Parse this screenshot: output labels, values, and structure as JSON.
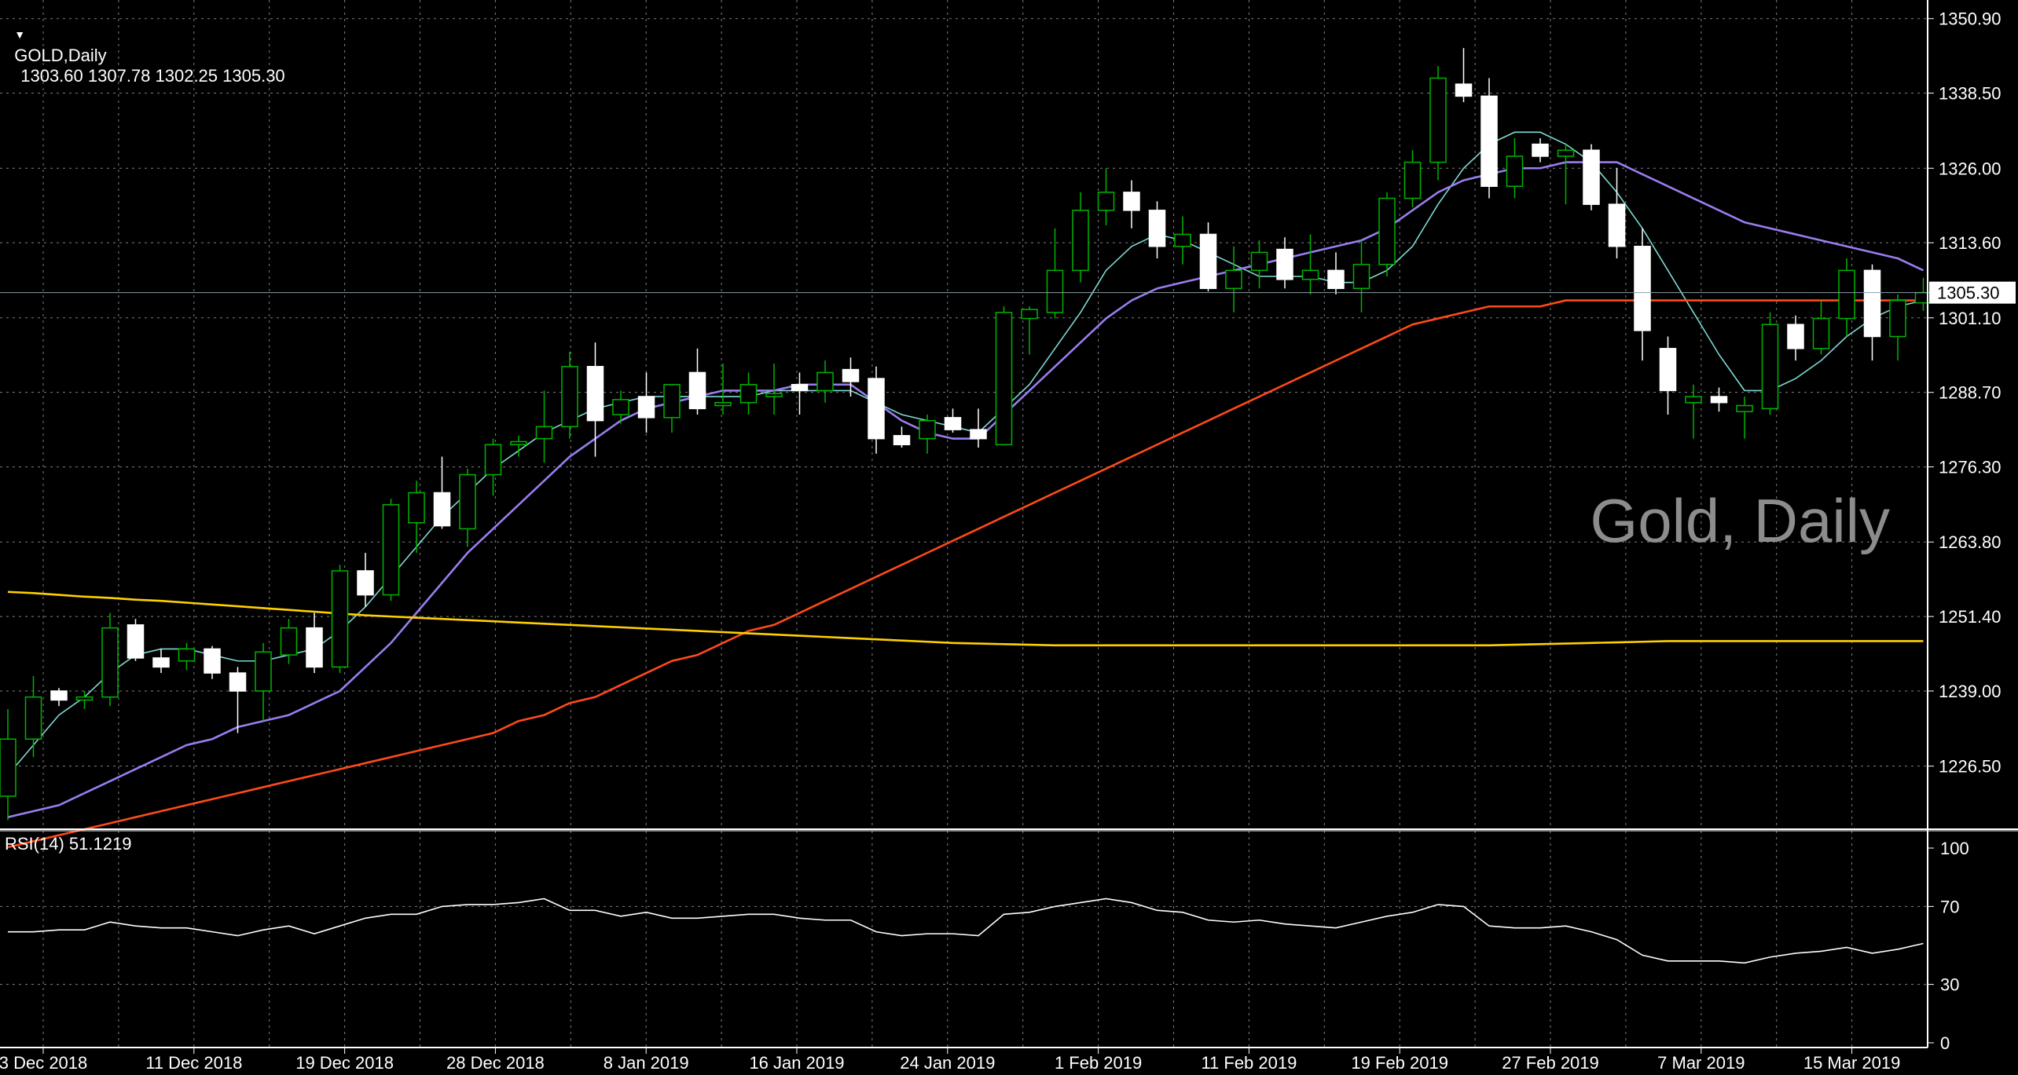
{
  "header": {
    "symbol_label": "GOLD,Daily",
    "ohlc": "1303.60 1307.78 1302.25 1305.30"
  },
  "watermark": "Gold, Daily",
  "price_axis": {
    "ticks": [
      "1350.90",
      "1338.50",
      "1326.00",
      "1313.60",
      "1301.10",
      "1288.70",
      "1276.30",
      "1263.80",
      "1251.40",
      "1239.00",
      "1226.50"
    ],
    "current_price_label": "1305.30"
  },
  "rsi": {
    "label": "RSI(14) 51.1219",
    "ticks": [
      "100",
      "70",
      "30",
      "0"
    ]
  },
  "time_axis": {
    "labels": [
      "3 Dec 2018",
      "11 Dec 2018",
      "19 Dec 2018",
      "28 Dec 2018",
      "8 Jan 2019",
      "16 Jan 2019",
      "24 Jan 2019",
      "1 Feb 2019",
      "11 Feb 2019",
      "19 Feb 2019",
      "27 Feb 2019",
      "7 Mar 2019",
      "15 Mar 2019"
    ]
  },
  "colors": {
    "background": "#000000",
    "bull_candle": "#00b400",
    "bear_candle": "#ffffff",
    "ma_fast": "#7fd8d4",
    "ma_medium": "#9a7df0",
    "ma_slow": "#ff4a1a",
    "ma_long": "#ffd000",
    "rsi_line": "#ffffff",
    "grid": "#808080",
    "watermark": "#8c8c8c"
  },
  "chart_data": [
    {
      "type": "candlestick",
      "title": "GOLD,Daily",
      "ylim": [
        1216,
        1354
      ],
      "candles": [
        {
          "o": 1221.5,
          "h": 1236,
          "l": 1217.5,
          "c": 1231
        },
        {
          "o": 1231,
          "h": 1241.5,
          "l": 1228,
          "c": 1238
        },
        {
          "o": 1239,
          "h": 1239.5,
          "l": 1236.5,
          "c": 1237.5
        },
        {
          "o": 1237.5,
          "h": 1239,
          "l": 1236,
          "c": 1238
        },
        {
          "o": 1238,
          "h": 1252,
          "l": 1236.5,
          "c": 1249.5
        },
        {
          "o": 1250,
          "h": 1251,
          "l": 1244,
          "c": 1244.5
        },
        {
          "o": 1244.5,
          "h": 1246,
          "l": 1242,
          "c": 1243
        },
        {
          "o": 1244,
          "h": 1247,
          "l": 1242.5,
          "c": 1246
        },
        {
          "o": 1246,
          "h": 1246.5,
          "l": 1241,
          "c": 1242
        },
        {
          "o": 1242,
          "h": 1243,
          "l": 1232,
          "c": 1239
        },
        {
          "o": 1239,
          "h": 1247,
          "l": 1234,
          "c": 1245.5
        },
        {
          "o": 1245,
          "h": 1251,
          "l": 1243.5,
          "c": 1249.5
        },
        {
          "o": 1249.5,
          "h": 1252,
          "l": 1242,
          "c": 1243
        },
        {
          "o": 1243,
          "h": 1260,
          "l": 1242,
          "c": 1259
        },
        {
          "o": 1259,
          "h": 1262,
          "l": 1253,
          "c": 1255
        },
        {
          "o": 1255,
          "h": 1271,
          "l": 1254,
          "c": 1270
        },
        {
          "o": 1267,
          "h": 1274,
          "l": 1262,
          "c": 1272
        },
        {
          "o": 1272,
          "h": 1278,
          "l": 1266,
          "c": 1266.5
        },
        {
          "o": 1266,
          "h": 1276,
          "l": 1263,
          "c": 1275
        },
        {
          "o": 1275,
          "h": 1281,
          "l": 1271.5,
          "c": 1280
        },
        {
          "o": 1280,
          "h": 1281.5,
          "l": 1278,
          "c": 1280.5
        },
        {
          "o": 1281,
          "h": 1289,
          "l": 1277,
          "c": 1283
        },
        {
          "o": 1283,
          "h": 1295.5,
          "l": 1281,
          "c": 1293
        },
        {
          "o": 1293,
          "h": 1297,
          "l": 1278,
          "c": 1284
        },
        {
          "o": 1285,
          "h": 1289,
          "l": 1283.5,
          "c": 1287.5
        },
        {
          "o": 1288,
          "h": 1292,
          "l": 1282,
          "c": 1284.5
        },
        {
          "o": 1284.5,
          "h": 1290,
          "l": 1282,
          "c": 1290
        },
        {
          "o": 1292,
          "h": 1296,
          "l": 1285,
          "c": 1286
        },
        {
          "o": 1286.5,
          "h": 1293.5,
          "l": 1285,
          "c": 1287
        },
        {
          "o": 1287,
          "h": 1292,
          "l": 1285,
          "c": 1290
        },
        {
          "o": 1288,
          "h": 1293.5,
          "l": 1285,
          "c": 1288.5
        },
        {
          "o": 1290,
          "h": 1292,
          "l": 1285,
          "c": 1289
        },
        {
          "o": 1289,
          "h": 1294,
          "l": 1287,
          "c": 1292
        },
        {
          "o": 1292.5,
          "h": 1294.5,
          "l": 1288,
          "c": 1290.5
        },
        {
          "o": 1291,
          "h": 1293,
          "l": 1278.5,
          "c": 1281
        },
        {
          "o": 1281.5,
          "h": 1283,
          "l": 1279.5,
          "c": 1280
        },
        {
          "o": 1281,
          "h": 1285,
          "l": 1278.5,
          "c": 1284
        },
        {
          "o": 1284.5,
          "h": 1286,
          "l": 1282,
          "c": 1282.5
        },
        {
          "o": 1282.5,
          "h": 1286,
          "l": 1279.5,
          "c": 1281
        },
        {
          "o": 1280,
          "h": 1303,
          "l": 1280,
          "c": 1302
        },
        {
          "o": 1301,
          "h": 1303,
          "l": 1295,
          "c": 1302.5
        },
        {
          "o": 1302,
          "h": 1316,
          "l": 1301,
          "c": 1309
        },
        {
          "o": 1309,
          "h": 1322,
          "l": 1307,
          "c": 1319
        },
        {
          "o": 1319,
          "h": 1326,
          "l": 1316.5,
          "c": 1322
        },
        {
          "o": 1322,
          "h": 1324,
          "l": 1316,
          "c": 1319
        },
        {
          "o": 1319,
          "h": 1320.5,
          "l": 1311,
          "c": 1313
        },
        {
          "o": 1313,
          "h": 1318,
          "l": 1310,
          "c": 1315
        },
        {
          "o": 1315,
          "h": 1317,
          "l": 1305.5,
          "c": 1306
        },
        {
          "o": 1306,
          "h": 1313,
          "l": 1302,
          "c": 1309
        },
        {
          "o": 1309,
          "h": 1314,
          "l": 1306,
          "c": 1312
        },
        {
          "o": 1312.5,
          "h": 1314.5,
          "l": 1306,
          "c": 1307.5
        },
        {
          "o": 1307.5,
          "h": 1315,
          "l": 1305,
          "c": 1309
        },
        {
          "o": 1309,
          "h": 1312,
          "l": 1305,
          "c": 1306
        },
        {
          "o": 1306,
          "h": 1314,
          "l": 1302,
          "c": 1310
        },
        {
          "o": 1310,
          "h": 1322,
          "l": 1308,
          "c": 1321
        },
        {
          "o": 1321,
          "h": 1329,
          "l": 1319.5,
          "c": 1327
        },
        {
          "o": 1327,
          "h": 1343,
          "l": 1324,
          "c": 1341
        },
        {
          "o": 1340,
          "h": 1346,
          "l": 1337,
          "c": 1338
        },
        {
          "o": 1338,
          "h": 1341,
          "l": 1321,
          "c": 1323
        },
        {
          "o": 1323,
          "h": 1331,
          "l": 1321,
          "c": 1328
        },
        {
          "o": 1330,
          "h": 1331,
          "l": 1327,
          "c": 1328
        },
        {
          "o": 1328,
          "h": 1330,
          "l": 1320,
          "c": 1329
        },
        {
          "o": 1329,
          "h": 1330,
          "l": 1319,
          "c": 1320
        },
        {
          "o": 1320,
          "h": 1326,
          "l": 1311,
          "c": 1313
        },
        {
          "o": 1313,
          "h": 1316,
          "l": 1294,
          "c": 1299
        },
        {
          "o": 1296,
          "h": 1298,
          "l": 1285,
          "c": 1289
        },
        {
          "o": 1287,
          "h": 1290,
          "l": 1281,
          "c": 1288
        },
        {
          "o": 1288,
          "h": 1289.5,
          "l": 1285.5,
          "c": 1287
        },
        {
          "o": 1285.5,
          "h": 1288,
          "l": 1281,
          "c": 1286.5
        },
        {
          "o": 1286,
          "h": 1302,
          "l": 1285,
          "c": 1300
        },
        {
          "o": 1300,
          "h": 1301.5,
          "l": 1294,
          "c": 1296
        },
        {
          "o": 1296,
          "h": 1304,
          "l": 1295,
          "c": 1301
        },
        {
          "o": 1301,
          "h": 1311,
          "l": 1298,
          "c": 1309
        },
        {
          "o": 1309,
          "h": 1310,
          "l": 1294,
          "c": 1298
        },
        {
          "o": 1298,
          "h": 1305,
          "l": 1294,
          "c": 1304
        },
        {
          "o": 1303.6,
          "h": 1307.78,
          "l": 1302.25,
          "c": 1305.3
        }
      ],
      "moving_averages": [
        {
          "color": "#7fd8d4",
          "values": [
            1225,
            1230,
            1235,
            1238,
            1242,
            1245,
            1246,
            1246,
            1245,
            1244,
            1244,
            1245,
            1246,
            1249,
            1253,
            1258,
            1263,
            1268,
            1272,
            1276,
            1279,
            1282,
            1284,
            1286,
            1287,
            1288,
            1288,
            1288,
            1288,
            1288,
            1289,
            1289,
            1289,
            1289,
            1287,
            1285,
            1284,
            1283,
            1282,
            1286,
            1290,
            1296,
            1302,
            1309,
            1313,
            1315,
            1314,
            1312,
            1310,
            1308,
            1308,
            1308,
            1307,
            1307,
            1309,
            1313,
            1320,
            1326,
            1330,
            1332,
            1332,
            1330,
            1327,
            1322,
            1316,
            1309,
            1302,
            1295,
            1289,
            1289,
            1291,
            1294,
            1298,
            1301,
            1303,
            1304
          ]
        },
        {
          "color": "#9a7df0",
          "values": [
            1218,
            1219,
            1220,
            1222,
            1224,
            1226,
            1228,
            1230,
            1231,
            1233,
            1234,
            1235,
            1237,
            1239,
            1243,
            1247,
            1252,
            1257,
            1262,
            1266,
            1270,
            1274,
            1278,
            1281,
            1284,
            1286,
            1287,
            1288,
            1289,
            1289,
            1289,
            1290,
            1290,
            1290,
            1287,
            1284,
            1282,
            1281,
            1281,
            1285,
            1289,
            1293,
            1297,
            1301,
            1304,
            1306,
            1307,
            1308,
            1309,
            1310,
            1311,
            1312,
            1313,
            1314,
            1316,
            1319,
            1322,
            1324,
            1325,
            1326,
            1326,
            1327,
            1327,
            1327,
            1325,
            1323,
            1321,
            1319,
            1317,
            1316,
            1315,
            1314,
            1313,
            1312,
            1311,
            1309
          ]
        },
        {
          "color": "#ff4a1a",
          "values": [
            1213,
            1214,
            1215,
            1216,
            1217,
            1218,
            1219,
            1220,
            1221,
            1222,
            1223,
            1224,
            1225,
            1226,
            1227,
            1228,
            1229,
            1230,
            1231,
            1232,
            1234,
            1235,
            1237,
            1238,
            1240,
            1242,
            1244,
            1245,
            1247,
            1249,
            1250,
            1252,
            1254,
            1256,
            1258,
            1260,
            1262,
            1264,
            1266,
            1268,
            1270,
            1272,
            1274,
            1276,
            1278,
            1280,
            1282,
            1284,
            1286,
            1288,
            1290,
            1292,
            1294,
            1296,
            1298,
            1300,
            1301,
            1302,
            1303,
            1303,
            1303,
            1304,
            1304,
            1304,
            1304,
            1304,
            1304,
            1304,
            1304,
            1304,
            1304,
            1304,
            1304,
            1304,
            1304,
            1304
          ]
        },
        {
          "color": "#ffd000",
          "values": [
            1255.5,
            1255.3,
            1255,
            1254.7,
            1254.5,
            1254.2,
            1254,
            1253.7,
            1253.4,
            1253.1,
            1252.8,
            1252.5,
            1252.2,
            1251.9,
            1251.6,
            1251.4,
            1251.2,
            1251,
            1250.8,
            1250.6,
            1250.4,
            1250.2,
            1250,
            1249.8,
            1249.6,
            1249.4,
            1249.2,
            1249,
            1248.8,
            1248.6,
            1248.4,
            1248.2,
            1248,
            1247.8,
            1247.6,
            1247.4,
            1247.2,
            1247,
            1246.9,
            1246.8,
            1246.7,
            1246.6,
            1246.6,
            1246.6,
            1246.6,
            1246.6,
            1246.6,
            1246.6,
            1246.6,
            1246.6,
            1246.6,
            1246.6,
            1246.6,
            1246.6,
            1246.6,
            1246.6,
            1246.6,
            1246.6,
            1246.6,
            1246.7,
            1246.8,
            1246.9,
            1247,
            1247.1,
            1247.2,
            1247.3,
            1247.3,
            1247.3,
            1247.3,
            1247.3,
            1247.3,
            1247.3,
            1247.3,
            1247.3,
            1247.3,
            1247.3
          ]
        }
      ],
      "last_price": 1305.3
    },
    {
      "type": "line",
      "title": "RSI(14) 51.1219",
      "ylim": [
        0,
        100
      ],
      "values": [
        57,
        57,
        58,
        58,
        62,
        60,
        59,
        59,
        57,
        55,
        58,
        60,
        56,
        60,
        64,
        66,
        66,
        70,
        71,
        71,
        72,
        74,
        68,
        68,
        65,
        67,
        64,
        64,
        65,
        66,
        66,
        64,
        63,
        63,
        57,
        55,
        56,
        56,
        55,
        66,
        67,
        70,
        72,
        74,
        72,
        68,
        67,
        63,
        62,
        63,
        61,
        60,
        59,
        62,
        65,
        67,
        71,
        70,
        60,
        59,
        59,
        60,
        57,
        53,
        45,
        42,
        42,
        42,
        41,
        44,
        46,
        47,
        49,
        46,
        48,
        51
      ]
    }
  ]
}
